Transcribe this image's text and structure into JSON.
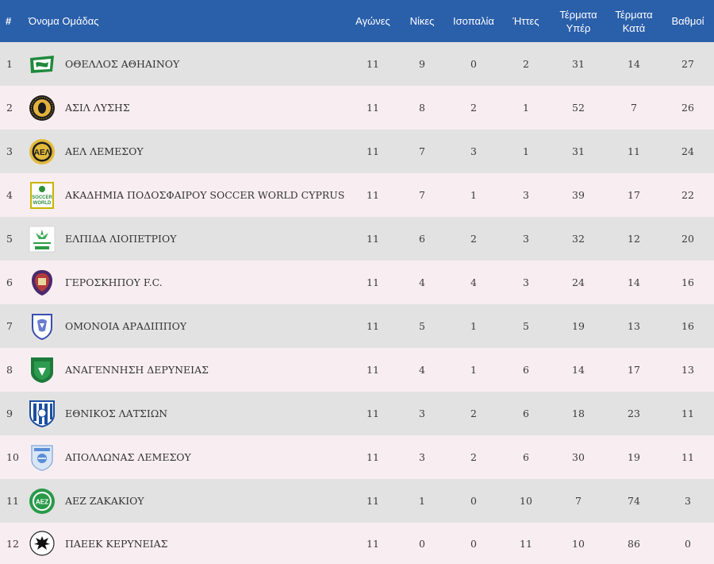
{
  "headers": {
    "rank": "#",
    "team": "Όνομα Ομάδας",
    "played": "Αγώνες",
    "wins": "Νίκες",
    "draws": "Ισοπαλία",
    "losses": "Ήττες",
    "goals_for_line1": "Τέρματα",
    "goals_for_line2": "Υπέρ",
    "goals_against_line1": "Τέρματα",
    "goals_against_line2": "Κατά",
    "points": "Βαθμοί"
  },
  "rows": [
    {
      "rank": "1",
      "team": "ΟΘΕΛΛΟΣ ΑΘΗΑΙΝΟΥ",
      "played": "11",
      "wins": "9",
      "draws": "0",
      "losses": "2",
      "gf": "31",
      "ga": "14",
      "pts": "27",
      "logo": "othellos-crest-icon"
    },
    {
      "rank": "2",
      "team": "ΑΣΙΛ ΛΥΣΗΣ",
      "played": "11",
      "wins": "8",
      "draws": "2",
      "losses": "1",
      "gf": "52",
      "ga": "7",
      "pts": "26",
      "logo": "asil-crest-icon"
    },
    {
      "rank": "3",
      "team": "ΑΕΛ ΛΕΜΕΣΟΥ",
      "played": "11",
      "wins": "7",
      "draws": "3",
      "losses": "1",
      "gf": "31",
      "ga": "11",
      "pts": "24",
      "logo": "ael-crest-icon"
    },
    {
      "rank": "4",
      "team": "ΑΚΑΔΗΜΙΑ ΠΟΔΟΣΦΑΙΡΟΥ SOCCER WORLD CYPRUS",
      "played": "11",
      "wins": "7",
      "draws": "1",
      "losses": "3",
      "gf": "39",
      "ga": "17",
      "pts": "22",
      "logo": "soccer-world-crest-icon"
    },
    {
      "rank": "5",
      "team": "ΕΛΠΙΔΑ ΛΙΟΠΕΤΡΙΟΥ",
      "played": "11",
      "wins": "6",
      "draws": "2",
      "losses": "3",
      "gf": "32",
      "ga": "12",
      "pts": "20",
      "logo": "elpida-crest-icon"
    },
    {
      "rank": "6",
      "team": "ΓΕΡΟΣΚΗΠΟΥ F.C.",
      "played": "11",
      "wins": "4",
      "draws": "4",
      "losses": "3",
      "gf": "24",
      "ga": "14",
      "pts": "16",
      "logo": "geroskipou-crest-icon"
    },
    {
      "rank": "7",
      "team": "ΟΜΟΝΟΙΑ ΑΡΑΔΙΠΠΟΥ",
      "played": "11",
      "wins": "5",
      "draws": "1",
      "losses": "5",
      "gf": "19",
      "ga": "13",
      "pts": "16",
      "logo": "omonoia-crest-icon"
    },
    {
      "rank": "8",
      "team": "ΑΝΑΓΕΝΝΗΣΗ ΔΕΡΥΝΕΙΑΣ",
      "played": "11",
      "wins": "4",
      "draws": "1",
      "losses": "6",
      "gf": "14",
      "ga": "17",
      "pts": "13",
      "logo": "anagennisi-crest-icon"
    },
    {
      "rank": "9",
      "team": "ΕΘΝΙΚΟΣ ΛΑΤΣΙΩΝ",
      "played": "11",
      "wins": "3",
      "draws": "2",
      "losses": "6",
      "gf": "18",
      "ga": "23",
      "pts": "11",
      "logo": "ethnikos-crest-icon"
    },
    {
      "rank": "10",
      "team": "ΑΠΟΛΛΩΝΑΣ ΛΕΜΕΣΟΥ",
      "played": "11",
      "wins": "3",
      "draws": "2",
      "losses": "6",
      "gf": "30",
      "ga": "19",
      "pts": "11",
      "logo": "apollon-crest-icon"
    },
    {
      "rank": "11",
      "team": "ΑΕΖ ΖΑΚΑΚΙΟΥ",
      "played": "11",
      "wins": "1",
      "draws": "0",
      "losses": "10",
      "gf": "7",
      "ga": "74",
      "pts": "3",
      "logo": "aez-crest-icon"
    },
    {
      "rank": "12",
      "team": "ΠΑΕΕΚ ΚΕΡΥΝΕΙΑΣ",
      "played": "11",
      "wins": "0",
      "draws": "0",
      "losses": "11",
      "gf": "10",
      "ga": "86",
      "pts": "0",
      "logo": "paeek-crest-icon"
    }
  ],
  "colors": {
    "header_bg": "#2a5faa",
    "row_odd": "#e2e2e2",
    "row_even": "#f8eef1"
  }
}
